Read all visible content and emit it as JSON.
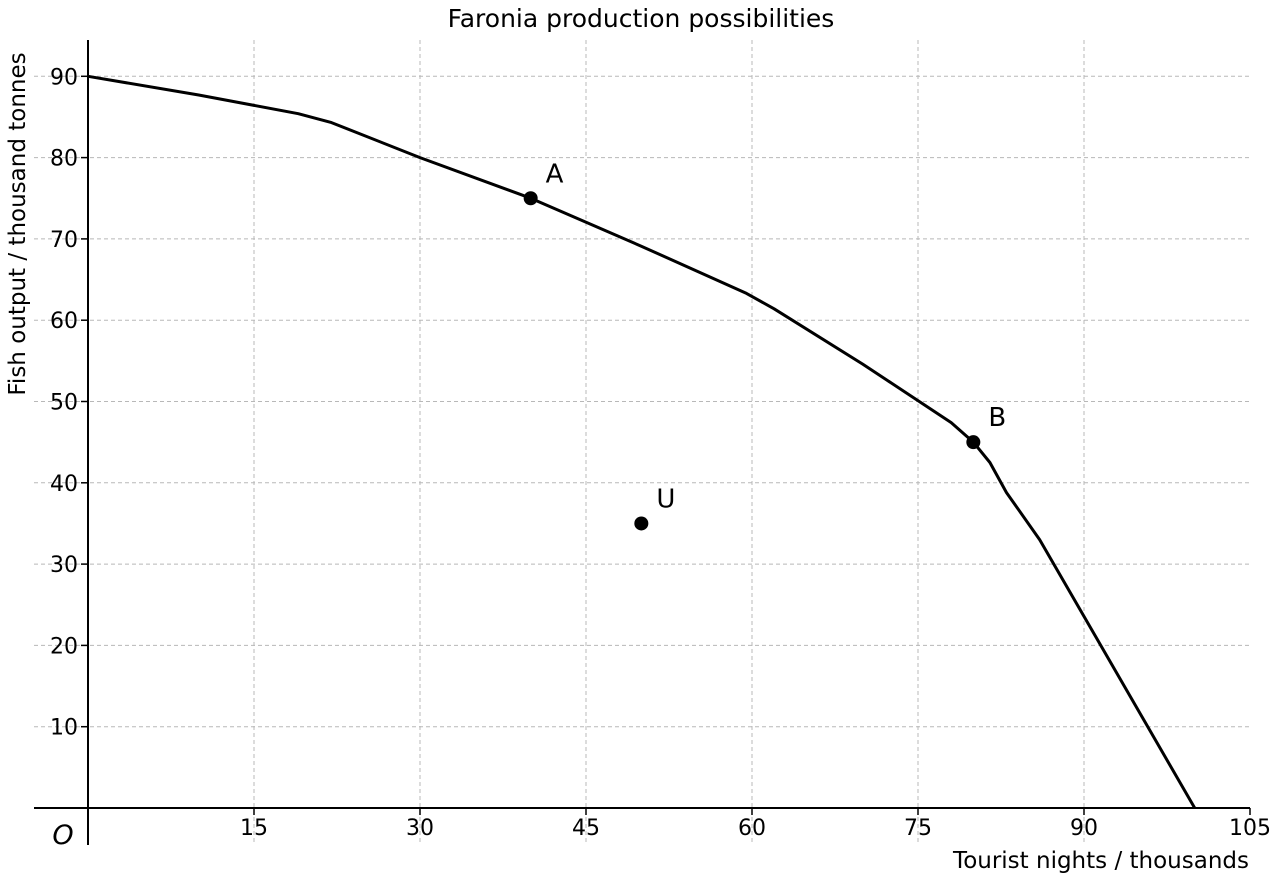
{
  "chart_data": {
    "type": "line",
    "title": "Faronia production possibilities",
    "xlabel": "Tourist nights / thousands",
    "ylabel": "Fish output / thousand tonnes",
    "origin_label": "O",
    "xlim": [
      0,
      105
    ],
    "ylim": [
      0,
      94
    ],
    "x_ticks": [
      15,
      30,
      45,
      60,
      75,
      90,
      105
    ],
    "y_ticks": [
      10,
      20,
      30,
      40,
      50,
      60,
      70,
      80,
      90
    ],
    "grid": true,
    "series": [
      {
        "values": [
          {
            "x": 0,
            "y": 90
          },
          {
            "x": 10,
            "y": 87.7
          },
          {
            "x": 19,
            "y": 85.4
          },
          {
            "x": 22,
            "y": 84.3
          },
          {
            "x": 30,
            "y": 80
          },
          {
            "x": 40,
            "y": 75
          },
          {
            "x": 50,
            "y": 69.1
          },
          {
            "x": 59.5,
            "y": 63.3
          },
          {
            "x": 62,
            "y": 61.4
          },
          {
            "x": 70,
            "y": 54.6
          },
          {
            "x": 78,
            "y": 47.4
          },
          {
            "x": 80,
            "y": 45
          },
          {
            "x": 81.5,
            "y": 42.5
          },
          {
            "x": 83,
            "y": 38.8
          },
          {
            "x": 86,
            "y": 33
          },
          {
            "x": 100,
            "y": 0
          }
        ]
      }
    ],
    "points": [
      {
        "label": "A",
        "x": 40,
        "y": 75
      },
      {
        "label": "B",
        "x": 80,
        "y": 45
      },
      {
        "label": "U",
        "x": 50,
        "y": 35
      }
    ]
  }
}
